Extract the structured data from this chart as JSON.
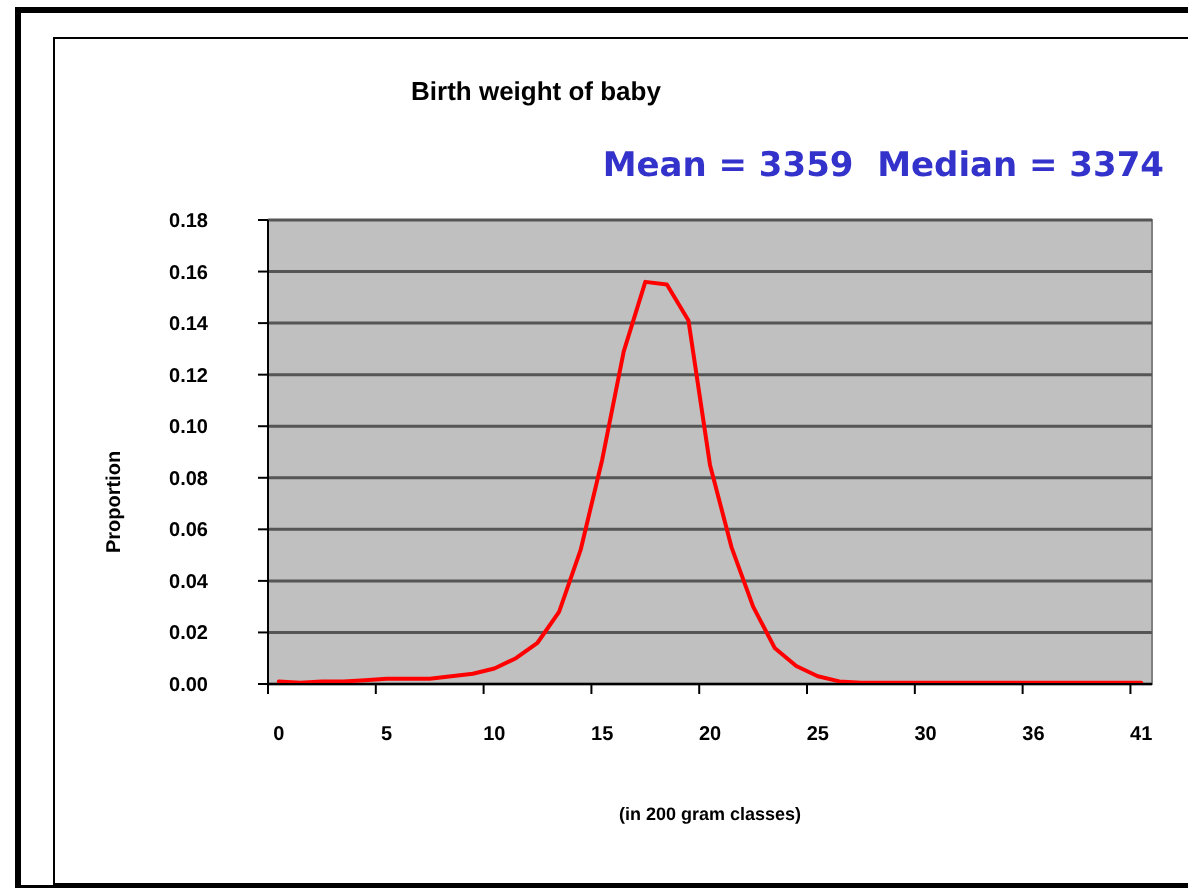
{
  "chart_data": {
    "type": "line",
    "title": "Birth weight of baby",
    "annotations": [
      "Mean = 3359  Median = 3374"
    ],
    "xlabel": "(in 200 gram classes)",
    "ylabel": "Proportion",
    "categories": [
      "0",
      null,
      null,
      null,
      null,
      "5",
      null,
      null,
      null,
      null,
      "10",
      null,
      null,
      null,
      null,
      "15",
      null,
      null,
      null,
      null,
      "20",
      null,
      null,
      null,
      null,
      "25",
      null,
      null,
      null,
      null,
      "30",
      null,
      null,
      null,
      null,
      "36",
      null,
      null,
      null,
      null,
      "41"
    ],
    "series": [
      {
        "color": "#ff0000",
        "values": [
          0.001,
          0.0005,
          0.001,
          0.001,
          0.0015,
          0.002,
          0.002,
          0.002,
          0.003,
          0.004,
          0.006,
          0.01,
          0.016,
          0.028,
          0.052,
          0.087,
          0.129,
          0.156,
          0.155,
          0.141,
          0.085,
          0.053,
          0.03,
          0.014,
          0.007,
          0.003,
          0.001,
          0.0005,
          0.0005,
          0.0005,
          0.0005,
          0.0005,
          0.0005,
          0.0005,
          0.0005,
          0.0005,
          0.0005,
          0.0005,
          0.0005,
          0.0005,
          0.0005
        ]
      }
    ],
    "ylim": [
      0,
      0.18
    ],
    "yticks": [
      {
        "value": 0,
        "label": "0.00"
      },
      {
        "value": 0.02,
        "label": "0.02"
      },
      {
        "value": 0.04,
        "label": "0.04"
      },
      {
        "value": 0.06,
        "label": "0.06"
      },
      {
        "value": 0.08,
        "label": "0.08"
      },
      {
        "value": 0.1,
        "label": "0.10"
      },
      {
        "value": 0.12,
        "label": "0.12"
      },
      {
        "value": 0.14,
        "label": "0.14"
      },
      {
        "value": 0.16,
        "label": "0.16"
      },
      {
        "value": 0.18,
        "label": "0.18"
      }
    ],
    "grid": "y",
    "marker": "none",
    "line_style": "solid"
  }
}
